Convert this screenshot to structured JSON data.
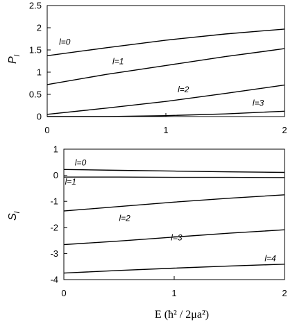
{
  "chart_data": [
    {
      "type": "line",
      "title": "",
      "ylabel": "P",
      "ylabel_sub": "l",
      "xlabel": "",
      "xlim": [
        0,
        2
      ],
      "ylim": [
        0,
        2.5
      ],
      "xticks": [
        "0",
        "1",
        "2"
      ],
      "yticks": [
        "0",
        "0.5",
        "1",
        "1.5",
        "2",
        "2.5"
      ],
      "grid": false,
      "x": [
        0,
        0.5,
        1,
        1.5,
        2
      ],
      "series": [
        {
          "name": "l=0",
          "values": [
            1.37,
            1.55,
            1.72,
            1.86,
            1.97
          ]
        },
        {
          "name": "l=1",
          "values": [
            0.72,
            0.95,
            1.15,
            1.35,
            1.53
          ]
        },
        {
          "name": "l=2",
          "values": [
            0.05,
            0.19,
            0.34,
            0.52,
            0.71
          ]
        },
        {
          "name": "l=3",
          "values": [
            0.0,
            0.0,
            0.02,
            0.06,
            0.12
          ]
        }
      ]
    },
    {
      "type": "line",
      "title": "",
      "ylabel": "S",
      "ylabel_sub": "l",
      "xlabel": "E (ħ² / 2μa²)",
      "xlim": [
        0,
        2
      ],
      "ylim": [
        -4,
        1
      ],
      "xticks": [
        "0",
        "1",
        "2"
      ],
      "yticks": [
        "-4",
        "-3",
        "-2",
        "-1",
        "0",
        "1"
      ],
      "grid": false,
      "x": [
        0,
        0.5,
        1,
        1.5,
        2
      ],
      "series": [
        {
          "name": "l=0",
          "values": [
            0.22,
            0.19,
            0.16,
            0.13,
            0.11
          ]
        },
        {
          "name": "l=1",
          "values": [
            -0.07,
            -0.07,
            -0.08,
            -0.08,
            -0.09
          ]
        },
        {
          "name": "l=2",
          "values": [
            -1.37,
            -1.2,
            -1.03,
            -0.88,
            -0.75
          ]
        },
        {
          "name": "l=3",
          "values": [
            -2.66,
            -2.52,
            -2.37,
            -2.22,
            -2.09
          ]
        },
        {
          "name": "l=4",
          "values": [
            -3.75,
            -3.65,
            -3.56,
            -3.48,
            -3.41
          ]
        }
      ]
    }
  ]
}
